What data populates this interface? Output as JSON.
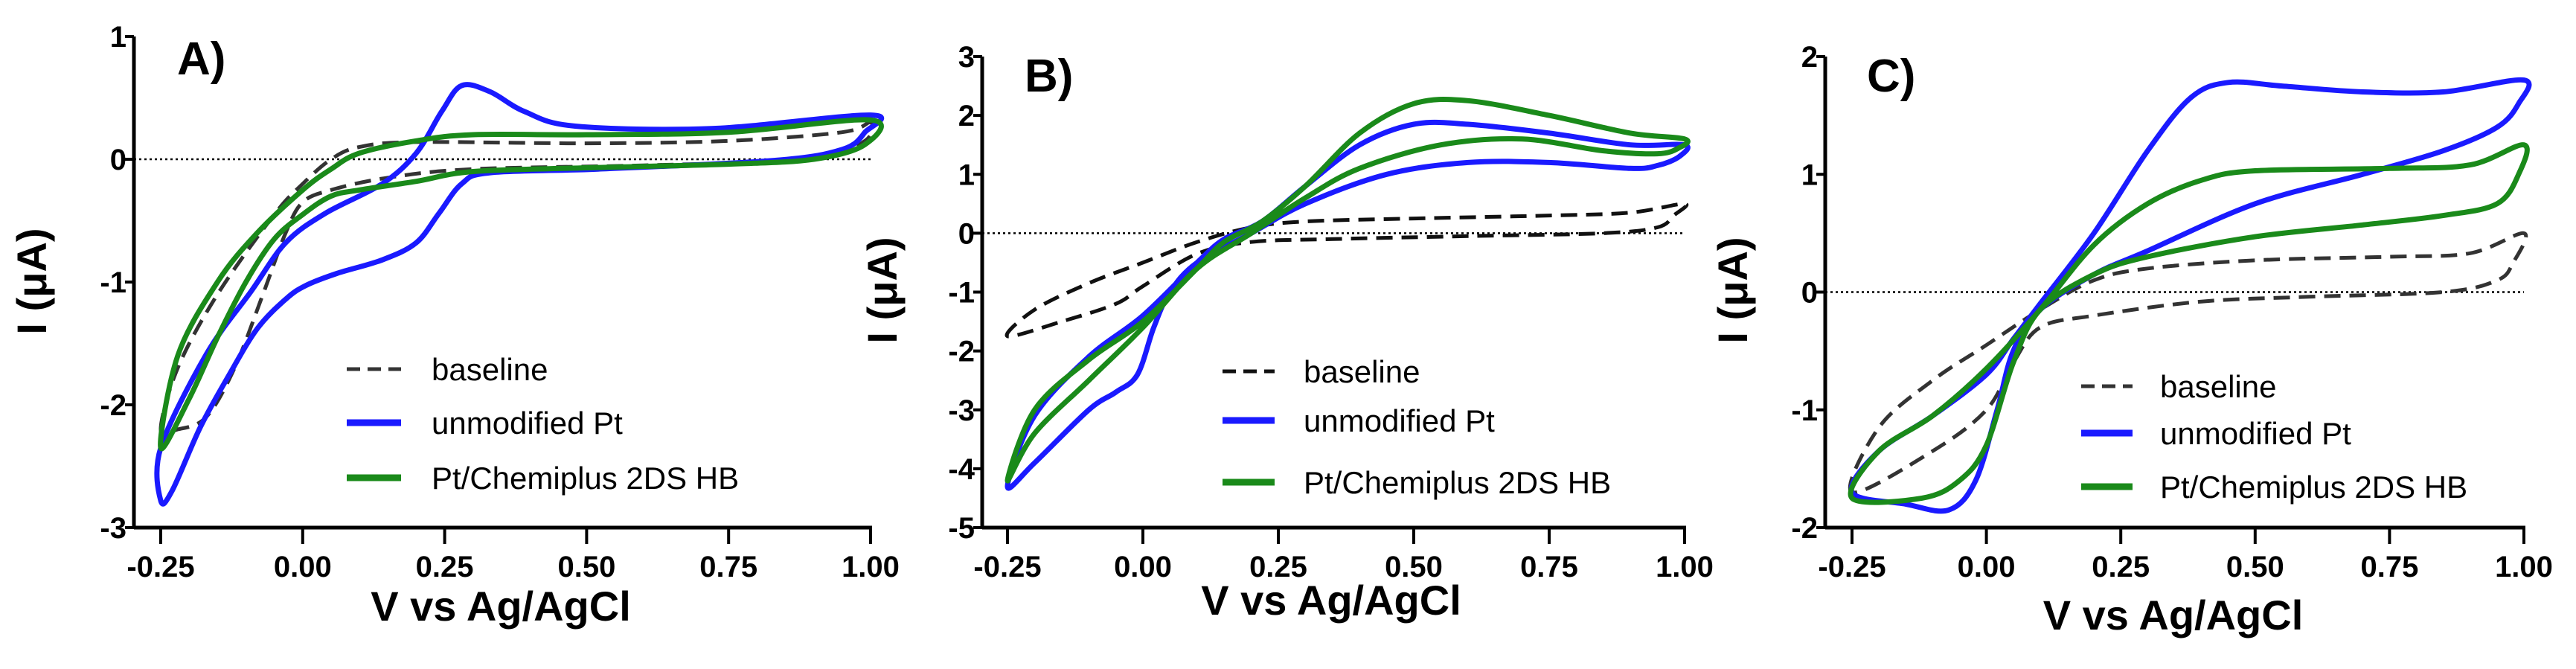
{
  "chart_data": [
    {
      "type": "line",
      "panel_label": "A)",
      "xlabel": "V vs Ag/AgCl",
      "ylabel": "I (μA)",
      "xlim": [
        -0.25,
        1.0
      ],
      "ylim": [
        -3,
        1
      ],
      "xticks": [
        "-0.25",
        "0.00",
        "0.25",
        "0.50",
        "0.75",
        "1.00"
      ],
      "yticks": [
        "-3",
        "-2",
        "-1",
        "0",
        "1"
      ],
      "legend_position": "bottom-right",
      "series": [
        {
          "name": "baseline",
          "color": "#333333",
          "style": "dashed",
          "points": [
            [
              -0.25,
              -2.2
            ],
            [
              -0.22,
              -1.7
            ],
            [
              -0.15,
              -1.1
            ],
            [
              -0.05,
              -0.45
            ],
            [
              0,
              -0.2
            ],
            [
              0.05,
              0.0
            ],
            [
              0.1,
              0.1
            ],
            [
              0.2,
              0.14
            ],
            [
              0.5,
              0.13
            ],
            [
              0.75,
              0.15
            ],
            [
              0.95,
              0.22
            ],
            [
              1.0,
              0.3
            ],
            [
              0.99,
              0.15
            ],
            [
              0.9,
              0.0
            ],
            [
              0.6,
              -0.05
            ],
            [
              0.3,
              -0.08
            ],
            [
              0.15,
              -0.15
            ],
            [
              0.05,
              -0.25
            ],
            [
              0,
              -0.35
            ],
            [
              -0.03,
              -0.6
            ],
            [
              -0.07,
              -1.1
            ],
            [
              -0.12,
              -1.7
            ],
            [
              -0.17,
              -2.1
            ],
            [
              -0.22,
              -2.2
            ]
          ]
        },
        {
          "name": "unmodified Pt",
          "color": "#1a1aff",
          "style": "solid",
          "points": [
            [
              -0.25,
              -2.35
            ],
            [
              -0.17,
              -1.59
            ],
            [
              -0.09,
              -1.07
            ],
            [
              -0.03,
              -0.68
            ],
            [
              0.04,
              -0.44
            ],
            [
              0.14,
              -0.2
            ],
            [
              0.2,
              0.05
            ],
            [
              0.245,
              0.39
            ],
            [
              0.28,
              0.6
            ],
            [
              0.33,
              0.55
            ],
            [
              0.39,
              0.39
            ],
            [
              0.48,
              0.27
            ],
            [
              0.72,
              0.25
            ],
            [
              1.0,
              0.36
            ],
            [
              0.99,
              0.22
            ],
            [
              0.95,
              0.08
            ],
            [
              0.83,
              -0.01
            ],
            [
              0.52,
              -0.08
            ],
            [
              0.33,
              -0.11
            ],
            [
              0.28,
              -0.2
            ],
            [
              0.24,
              -0.44
            ],
            [
              0.2,
              -0.68
            ],
            [
              0.14,
              -0.82
            ],
            [
              0.06,
              -0.93
            ],
            [
              0.005,
              -1.03
            ],
            [
              -0.03,
              -1.14
            ],
            [
              -0.08,
              -1.38
            ],
            [
              -0.13,
              -1.76
            ],
            [
              -0.18,
              -2.18
            ],
            [
              -0.23,
              -2.7
            ],
            [
              -0.25,
              -2.78
            ]
          ]
        },
        {
          "name": "Pt/Chemiplus 2DS HB",
          "color": "#1a8a1a",
          "style": "solid",
          "points": [
            [
              -0.25,
              -2.35
            ],
            [
              -0.22,
              -1.6
            ],
            [
              -0.15,
              -1.0
            ],
            [
              -0.08,
              -0.6
            ],
            [
              0,
              -0.25
            ],
            [
              0.05,
              -0.08
            ],
            [
              0.1,
              0.05
            ],
            [
              0.2,
              0.15
            ],
            [
              0.3,
              0.2
            ],
            [
              0.5,
              0.2
            ],
            [
              0.75,
              0.22
            ],
            [
              1.0,
              0.32
            ],
            [
              0.99,
              0.12
            ],
            [
              0.9,
              0.0
            ],
            [
              0.75,
              -0.04
            ],
            [
              0.5,
              -0.07
            ],
            [
              0.3,
              -0.1
            ],
            [
              0.2,
              -0.18
            ],
            [
              0.1,
              -0.25
            ],
            [
              0.05,
              -0.3
            ],
            [
              0,
              -0.45
            ],
            [
              -0.05,
              -0.65
            ],
            [
              -0.1,
              -1.0
            ],
            [
              -0.15,
              -1.45
            ],
            [
              -0.2,
              -1.95
            ]
          ]
        }
      ]
    },
    {
      "type": "line",
      "panel_label": "B)",
      "xlabel": "V vs Ag/AgCl",
      "ylabel": "I (μA)",
      "xlim": [
        -0.25,
        1.0
      ],
      "ylim": [
        -5,
        3
      ],
      "xticks": [
        "-0.25",
        "0.00",
        "0.25",
        "0.50",
        "0.75",
        "1.00"
      ],
      "yticks": [
        "-5",
        "-4",
        "-3",
        "-2",
        "-1",
        "0",
        "1",
        "2",
        "3"
      ],
      "legend_position": "bottom-right",
      "series": [
        {
          "name": "baseline",
          "color": "#111111",
          "style": "dashed",
          "points": [
            [
              -0.25,
              -1.75
            ],
            [
              -0.2,
              -1.3
            ],
            [
              -0.1,
              -0.85
            ],
            [
              0,
              -0.5
            ],
            [
              0.1,
              -0.15
            ],
            [
              0.2,
              0.1
            ],
            [
              0.3,
              0.2
            ],
            [
              0.5,
              0.25
            ],
            [
              0.75,
              0.3
            ],
            [
              0.9,
              0.35
            ],
            [
              1.0,
              0.5
            ],
            [
              0.98,
              0.3
            ],
            [
              0.95,
              0.1
            ],
            [
              0.85,
              0.0
            ],
            [
              0.6,
              -0.05
            ],
            [
              0.35,
              -0.1
            ],
            [
              0.2,
              -0.15
            ],
            [
              0.1,
              -0.35
            ],
            [
              0,
              -0.9
            ],
            [
              -0.05,
              -1.2
            ],
            [
              -0.15,
              -1.5
            ]
          ]
        },
        {
          "name": "unmodified Pt",
          "color": "#1a1aff",
          "style": "solid",
          "points": [
            [
              -0.25,
              -4.3
            ],
            [
              -0.2,
              -3.1
            ],
            [
              -0.1,
              -2.1
            ],
            [
              0,
              -1.4
            ],
            [
              0.1,
              -0.5
            ],
            [
              0.15,
              -0.1
            ],
            [
              0.22,
              0.2
            ],
            [
              0.3,
              0.8
            ],
            [
              0.4,
              1.5
            ],
            [
              0.5,
              1.85
            ],
            [
              0.6,
              1.85
            ],
            [
              0.75,
              1.7
            ],
            [
              0.9,
              1.5
            ],
            [
              1.0,
              1.5
            ],
            [
              0.99,
              1.3
            ],
            [
              0.95,
              1.15
            ],
            [
              0.9,
              1.1
            ],
            [
              0.75,
              1.2
            ],
            [
              0.6,
              1.2
            ],
            [
              0.45,
              1.0
            ],
            [
              0.3,
              0.5
            ],
            [
              0.2,
              0
            ],
            [
              0.1,
              -0.5
            ],
            [
              0.05,
              -1.0
            ],
            [
              0.02,
              -1.6
            ],
            [
              -0.01,
              -2.4
            ],
            [
              -0.05,
              -2.7
            ],
            [
              -0.1,
              -3.0
            ],
            [
              -0.2,
              -3.9
            ]
          ]
        },
        {
          "name": "Pt/Chemiplus 2DS HB",
          "color": "#1a8a1a",
          "style": "solid",
          "points": [
            [
              -0.25,
              -4.2
            ],
            [
              -0.2,
              -3.0
            ],
            [
              -0.1,
              -2.15
            ],
            [
              0,
              -1.5
            ],
            [
              0.1,
              -0.6
            ],
            [
              0.15,
              -0.15
            ],
            [
              0.22,
              0.2
            ],
            [
              0.3,
              0.8
            ],
            [
              0.4,
              1.7
            ],
            [
              0.5,
              2.2
            ],
            [
              0.6,
              2.25
            ],
            [
              0.75,
              2.0
            ],
            [
              0.9,
              1.7
            ],
            [
              1.0,
              1.6
            ],
            [
              0.99,
              1.45
            ],
            [
              0.95,
              1.35
            ],
            [
              0.85,
              1.4
            ],
            [
              0.7,
              1.6
            ],
            [
              0.55,
              1.5
            ],
            [
              0.4,
              1.1
            ],
            [
              0.3,
              0.6
            ],
            [
              0.2,
              0.0
            ],
            [
              0.1,
              -0.6
            ],
            [
              0,
              -1.6
            ],
            [
              -0.1,
              -2.5
            ],
            [
              -0.2,
              -3.4
            ]
          ]
        }
      ]
    },
    {
      "type": "line",
      "panel_label": "C)",
      "xlabel": "V vs Ag/AgCl",
      "ylabel": "I (μA)",
      "xlim": [
        -0.25,
        1.0
      ],
      "ylim": [
        -2,
        2
      ],
      "xticks": [
        "-0.25",
        "0.00",
        "0.25",
        "0.50",
        "0.75",
        "1.00"
      ],
      "yticks": [
        "-2",
        "-1",
        "0",
        "1",
        "2"
      ],
      "legend_position": "bottom-right",
      "series": [
        {
          "name": "baseline",
          "color": "#333333",
          "style": "dashed",
          "points": [
            [
              -0.25,
              -1.7
            ],
            [
              -0.2,
              -1.15
            ],
            [
              -0.1,
              -0.75
            ],
            [
              0,
              -0.45
            ],
            [
              0.1,
              -0.15
            ],
            [
              0.2,
              0.1
            ],
            [
              0.3,
              0.2
            ],
            [
              0.5,
              0.27
            ],
            [
              0.75,
              0.3
            ],
            [
              0.9,
              0.33
            ],
            [
              1.0,
              0.5
            ],
            [
              0.98,
              0.25
            ],
            [
              0.95,
              0.1
            ],
            [
              0.85,
              0.0
            ],
            [
              0.6,
              -0.04
            ],
            [
              0.4,
              -0.08
            ],
            [
              0.2,
              -0.2
            ],
            [
              0.1,
              -0.3
            ],
            [
              0.05,
              -0.6
            ],
            [
              0,
              -1.0
            ],
            [
              -0.1,
              -1.35
            ]
          ]
        },
        {
          "name": "unmodified Pt",
          "color": "#1a1aff",
          "style": "solid",
          "points": [
            [
              -0.25,
              -1.7
            ],
            [
              -0.2,
              -1.35
            ],
            [
              -0.1,
              -1.05
            ],
            [
              0,
              -0.7
            ],
            [
              0.05,
              -0.4
            ],
            [
              0.1,
              -0.1
            ],
            [
              0.2,
              0.5
            ],
            [
              0.3,
              1.2
            ],
            [
              0.38,
              1.65
            ],
            [
              0.45,
              1.78
            ],
            [
              0.55,
              1.75
            ],
            [
              0.7,
              1.7
            ],
            [
              0.85,
              1.7
            ],
            [
              1.0,
              1.8
            ],
            [
              0.99,
              1.6
            ],
            [
              0.95,
              1.4
            ],
            [
              0.85,
              1.2
            ],
            [
              0.7,
              1.0
            ],
            [
              0.5,
              0.75
            ],
            [
              0.3,
              0.35
            ],
            [
              0.2,
              0.15
            ],
            [
              0.1,
              -0.15
            ],
            [
              0.05,
              -0.5
            ],
            [
              0.02,
              -1.0
            ],
            [
              -0.02,
              -1.6
            ],
            [
              -0.07,
              -1.85
            ],
            [
              -0.15,
              -1.8
            ]
          ]
        },
        {
          "name": "Pt/Chemiplus 2DS HB",
          "color": "#1a8a1a",
          "style": "solid",
          "points": [
            [
              -0.25,
              -1.75
            ],
            [
              -0.2,
              -1.35
            ],
            [
              -0.1,
              -1.05
            ],
            [
              0,
              -0.65
            ],
            [
              0.1,
              -0.15
            ],
            [
              0.2,
              0.4
            ],
            [
              0.3,
              0.75
            ],
            [
              0.4,
              0.95
            ],
            [
              0.5,
              1.03
            ],
            [
              0.75,
              1.05
            ],
            [
              0.9,
              1.08
            ],
            [
              1.0,
              1.25
            ],
            [
              0.99,
              1.0
            ],
            [
              0.95,
              0.75
            ],
            [
              0.85,
              0.65
            ],
            [
              0.7,
              0.57
            ],
            [
              0.5,
              0.47
            ],
            [
              0.3,
              0.3
            ],
            [
              0.2,
              0.15
            ],
            [
              0.1,
              -0.15
            ],
            [
              0.05,
              -0.6
            ],
            [
              0,
              -1.3
            ],
            [
              -0.05,
              -1.6
            ],
            [
              -0.12,
              -1.75
            ]
          ]
        }
      ]
    }
  ]
}
